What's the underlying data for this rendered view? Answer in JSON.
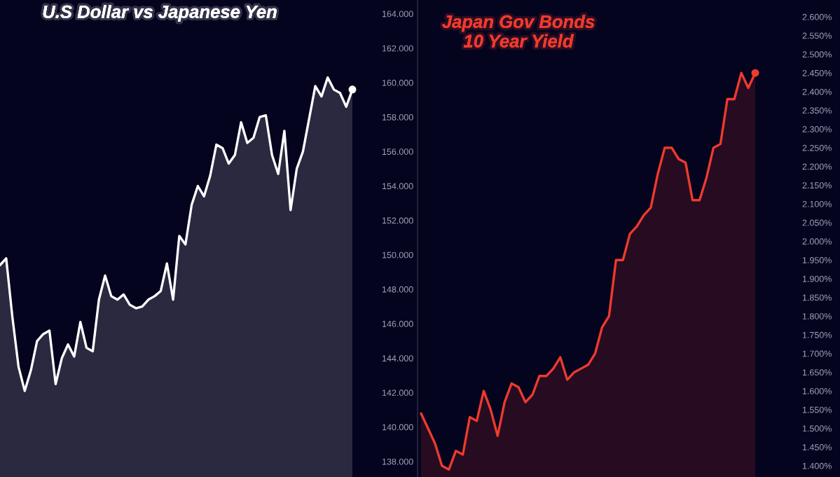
{
  "chart_data": [
    {
      "type": "area",
      "title": "U.S Dollar vs Japanese Yen",
      "categories": [
        null,
        null,
        null,
        null,
        null,
        null,
        null,
        null,
        null,
        null,
        null,
        null,
        null,
        null,
        null,
        null,
        null,
        null,
        null,
        null,
        null,
        null,
        null,
        null,
        null,
        null,
        null,
        null,
        null,
        null,
        null,
        null,
        null,
        null,
        null,
        null,
        null,
        null,
        null,
        null,
        null,
        null,
        null,
        null,
        null,
        null,
        null,
        null,
        null,
        null,
        null,
        null,
        null,
        null,
        null,
        null,
        null,
        null
      ],
      "series": [
        {
          "color": "#ffffff",
          "values": [
            149.4,
            149.8,
            146.4,
            143.5,
            142.1,
            143.3,
            145.0,
            145.4,
            145.6,
            142.5,
            144.0,
            144.8,
            144.1,
            146.1,
            144.6,
            144.4,
            147.4,
            148.8,
            147.6,
            147.4,
            147.7,
            147.1,
            146.9,
            147.0,
            147.4,
            147.6,
            147.9,
            149.5,
            147.4,
            151.1,
            150.6,
            152.9,
            154.0,
            153.4,
            154.6,
            156.4,
            156.2,
            155.3,
            155.8,
            157.7,
            156.5,
            156.8,
            158.0,
            158.1,
            155.8,
            154.7,
            157.2,
            152.6,
            155.0,
            156.0,
            157.9,
            159.8,
            159.2,
            160.3,
            159.6,
            159.4,
            158.6,
            159.6
          ]
        },
        {
          "type": "scatter",
          "color": "#ffffff",
          "marker": "circle",
          "values": [
            null,
            null,
            null,
            null,
            null,
            null,
            null,
            null,
            null,
            null,
            null,
            null,
            null,
            null,
            null,
            null,
            null,
            null,
            null,
            null,
            null,
            null,
            null,
            null,
            null,
            null,
            null,
            null,
            null,
            null,
            null,
            null,
            null,
            null,
            null,
            null,
            null,
            null,
            null,
            null,
            null,
            null,
            null,
            null,
            null,
            null,
            null,
            null,
            null,
            null,
            null,
            null,
            null,
            null,
            null,
            null,
            null,
            159.6
          ]
        }
      ],
      "ylim": [
        137.1,
        164.8
      ],
      "yticks": [
        {
          "value": 138,
          "label": "138.000"
        },
        {
          "value": 140,
          "label": "140.000"
        },
        {
          "value": 142,
          "label": "142.000"
        },
        {
          "value": 144,
          "label": "144.000"
        },
        {
          "value": 146,
          "label": "146.000"
        },
        {
          "value": 148,
          "label": "148.000"
        },
        {
          "value": 150,
          "label": "150.000"
        },
        {
          "value": 152,
          "label": "152.000"
        },
        {
          "value": 154,
          "label": "154.000"
        },
        {
          "value": 156,
          "label": "156.000"
        },
        {
          "value": 158,
          "label": "158.000"
        },
        {
          "value": 160,
          "label": "160.000"
        },
        {
          "value": 162,
          "label": "162.000"
        },
        {
          "value": 164,
          "label": "164.000"
        }
      ],
      "tick_labels": "y",
      "grid": false
    },
    {
      "type": "area",
      "title": "Japan Gov Bonds\n10 Year Yield",
      "categories": [
        null,
        null,
        null,
        null,
        null,
        null,
        null,
        null,
        null,
        null,
        null,
        null,
        null,
        null,
        null,
        null,
        null,
        null,
        null,
        null,
        null,
        null,
        null,
        null,
        null,
        null,
        null,
        null,
        null,
        null,
        null,
        null,
        null,
        null,
        null,
        null,
        null,
        null,
        null,
        null,
        null,
        null,
        null,
        null,
        null,
        null,
        null,
        null,
        null
      ],
      "series": [
        {
          "color": "#ee3a2e",
          "values": [
            1.54,
            1.5,
            1.46,
            1.4,
            1.39,
            1.44,
            1.43,
            1.53,
            1.52,
            1.6,
            1.55,
            1.48,
            1.57,
            1.62,
            1.61,
            1.57,
            1.59,
            1.64,
            1.64,
            1.66,
            1.69,
            1.63,
            1.65,
            1.66,
            1.67,
            1.7,
            1.77,
            1.8,
            1.95,
            1.95,
            2.02,
            2.04,
            2.07,
            2.09,
            2.18,
            2.25,
            2.25,
            2.22,
            2.21,
            2.11,
            2.11,
            2.17,
            2.25,
            2.26,
            2.38,
            2.38,
            2.45,
            2.41,
            2.45
          ]
        },
        {
          "type": "scatter",
          "color": "#ee3a2e",
          "marker": "circle",
          "values": [
            null,
            null,
            null,
            null,
            null,
            null,
            null,
            null,
            null,
            null,
            null,
            null,
            null,
            null,
            null,
            null,
            null,
            null,
            null,
            null,
            null,
            null,
            null,
            null,
            null,
            null,
            null,
            null,
            null,
            null,
            null,
            null,
            null,
            null,
            null,
            null,
            null,
            null,
            null,
            null,
            null,
            null,
            null,
            null,
            null,
            null,
            null,
            null,
            2.45
          ]
        }
      ],
      "ylim": [
        1.37,
        2.645
      ],
      "yticks": [
        {
          "value": 1.4,
          "label": "1.400%"
        },
        {
          "value": 1.45,
          "label": "1.450%"
        },
        {
          "value": 1.5,
          "label": "1.500%"
        },
        {
          "value": 1.55,
          "label": "1.550%"
        },
        {
          "value": 1.6,
          "label": "1.600%"
        },
        {
          "value": 1.65,
          "label": "1.650%"
        },
        {
          "value": 1.7,
          "label": "1.700%"
        },
        {
          "value": 1.75,
          "label": "1.750%"
        },
        {
          "value": 1.8,
          "label": "1.800%"
        },
        {
          "value": 1.85,
          "label": "1.850%"
        },
        {
          "value": 1.9,
          "label": "1.900%"
        },
        {
          "value": 1.95,
          "label": "1.950%"
        },
        {
          "value": 2.0,
          "label": "2.000%"
        },
        {
          "value": 2.05,
          "label": "2.050%"
        },
        {
          "value": 2.1,
          "label": "2.100%"
        },
        {
          "value": 2.15,
          "label": "2.150%"
        },
        {
          "value": 2.2,
          "label": "2.200%"
        },
        {
          "value": 2.25,
          "label": "2.250%"
        },
        {
          "value": 2.3,
          "label": "2.300%"
        },
        {
          "value": 2.35,
          "label": "2.350%"
        },
        {
          "value": 2.4,
          "label": "2.400%"
        },
        {
          "value": 2.45,
          "label": "2.450%"
        },
        {
          "value": 2.5,
          "label": "2.500%"
        },
        {
          "value": 2.55,
          "label": "2.550%"
        },
        {
          "value": 2.6,
          "label": "2.600%"
        }
      ],
      "tick_labels": "y",
      "grid": false
    }
  ]
}
